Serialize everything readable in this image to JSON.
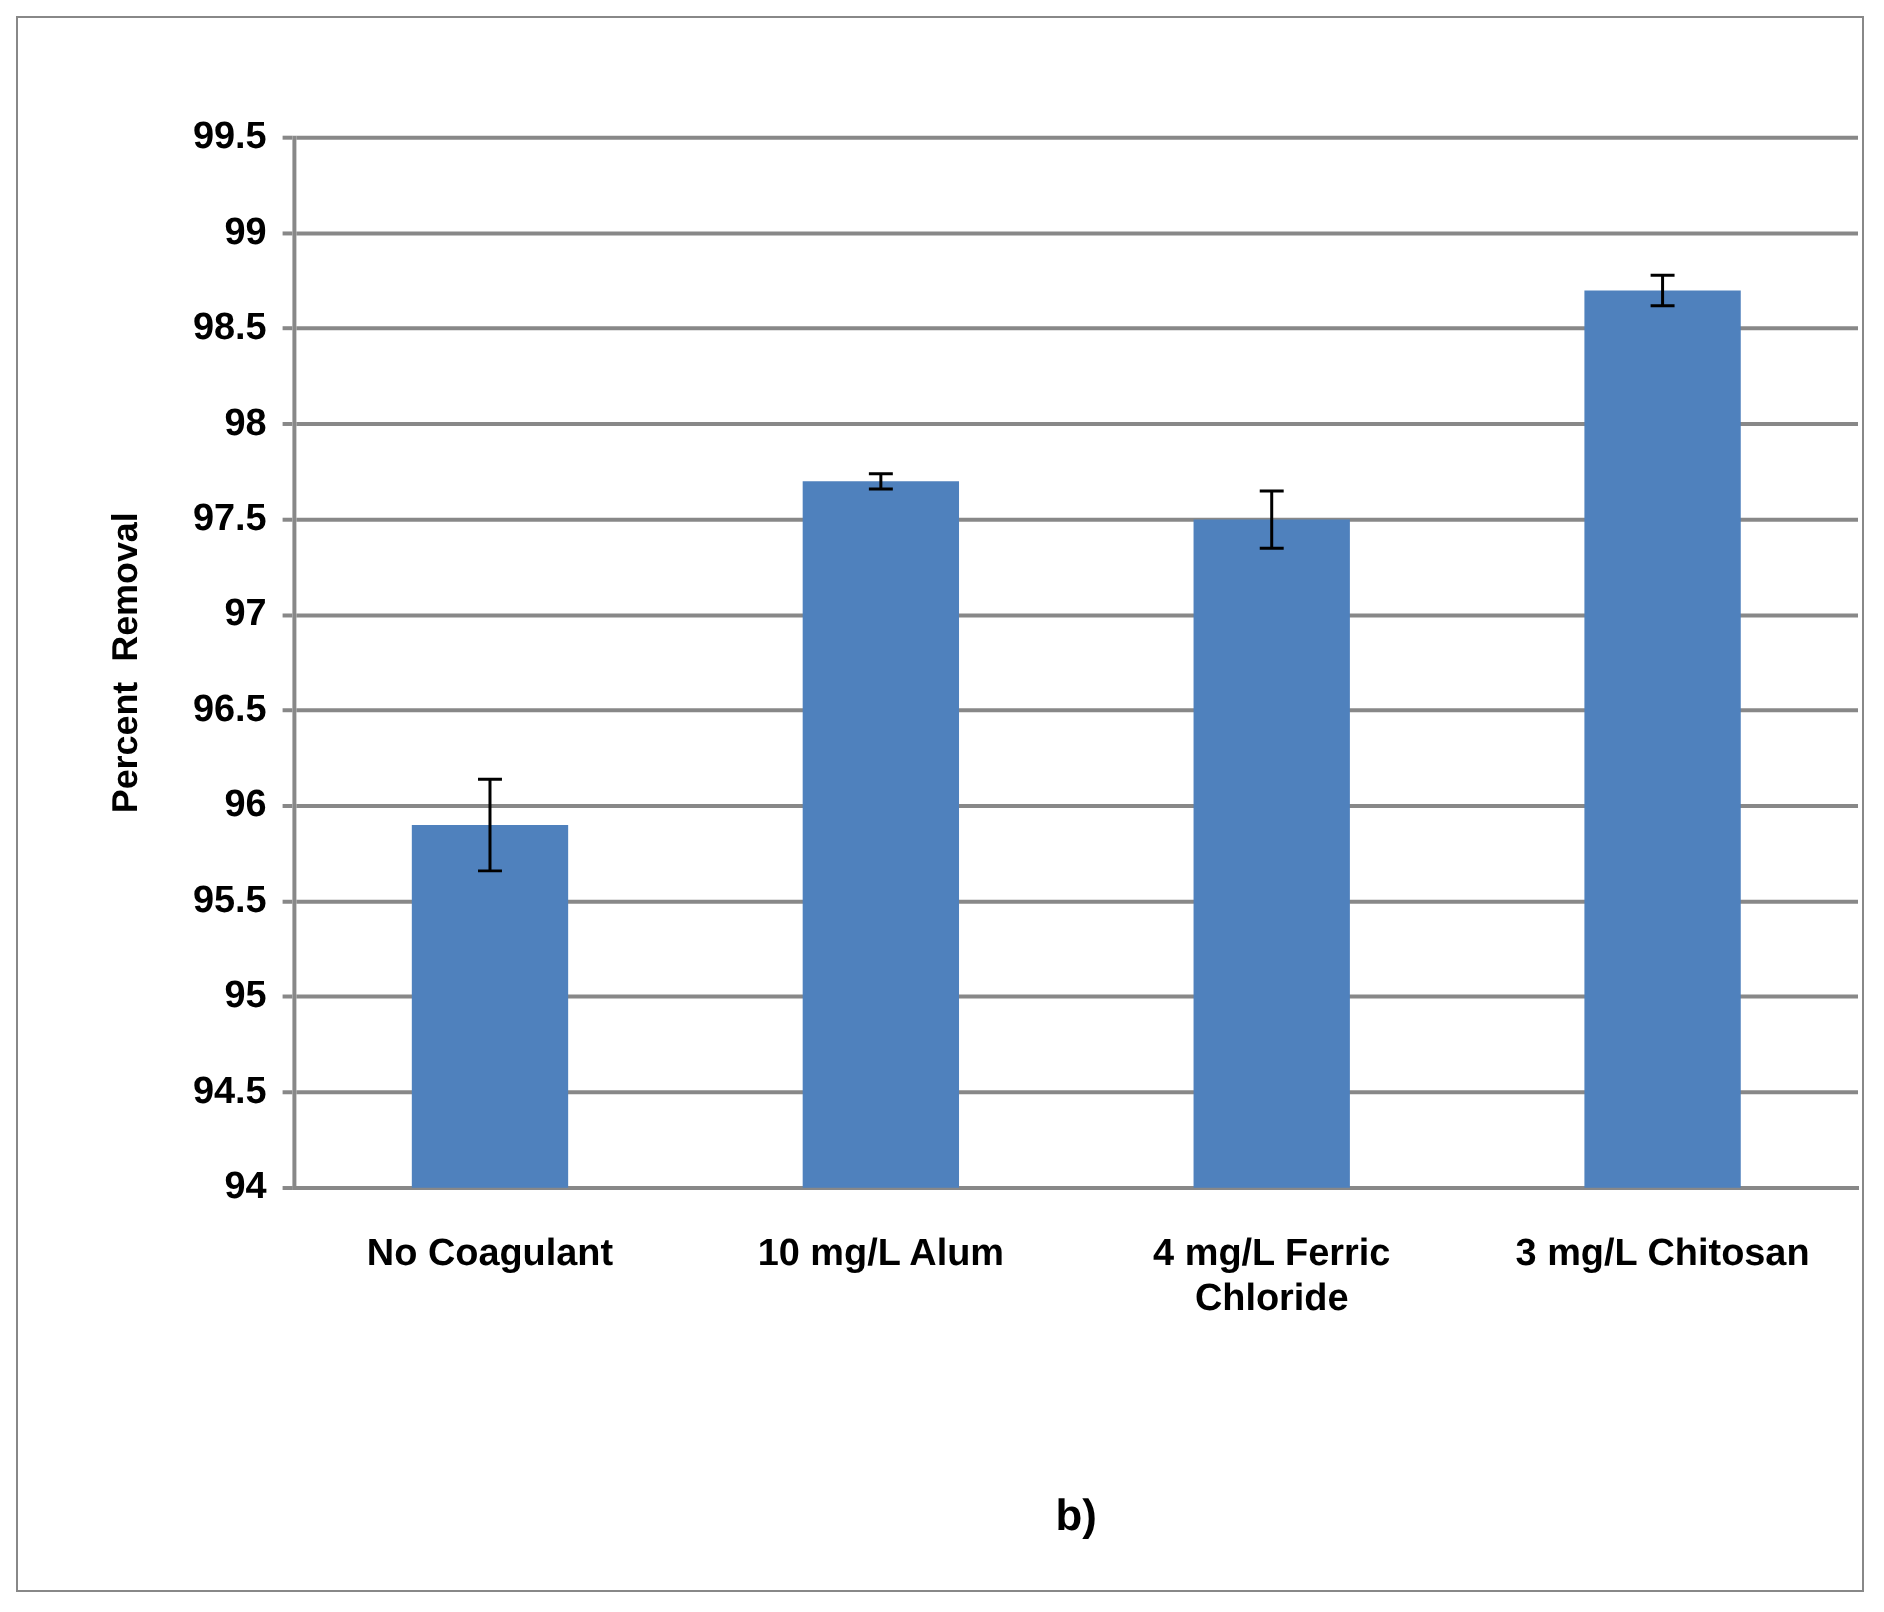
{
  "chart_data": {
    "type": "bar",
    "categories": [
      "No Coagulant",
      "10 mg/L Alum",
      "4 mg/L Ferric Chloride",
      "3 mg/L Chitosan"
    ],
    "values": [
      95.9,
      97.7,
      97.5,
      98.7
    ],
    "errors": [
      0.24,
      0.04,
      0.15,
      0.08
    ],
    "color": "#4f81bd",
    "ylabel": "Percent  Removal",
    "ylim": [
      94,
      99.5
    ],
    "yticks": [
      94,
      94.5,
      95,
      95.5,
      96,
      96.5,
      97,
      97.5,
      98,
      98.5,
      99,
      99.5
    ],
    "grid": "y",
    "legend": false,
    "annotations": [
      "b)"
    ]
  }
}
